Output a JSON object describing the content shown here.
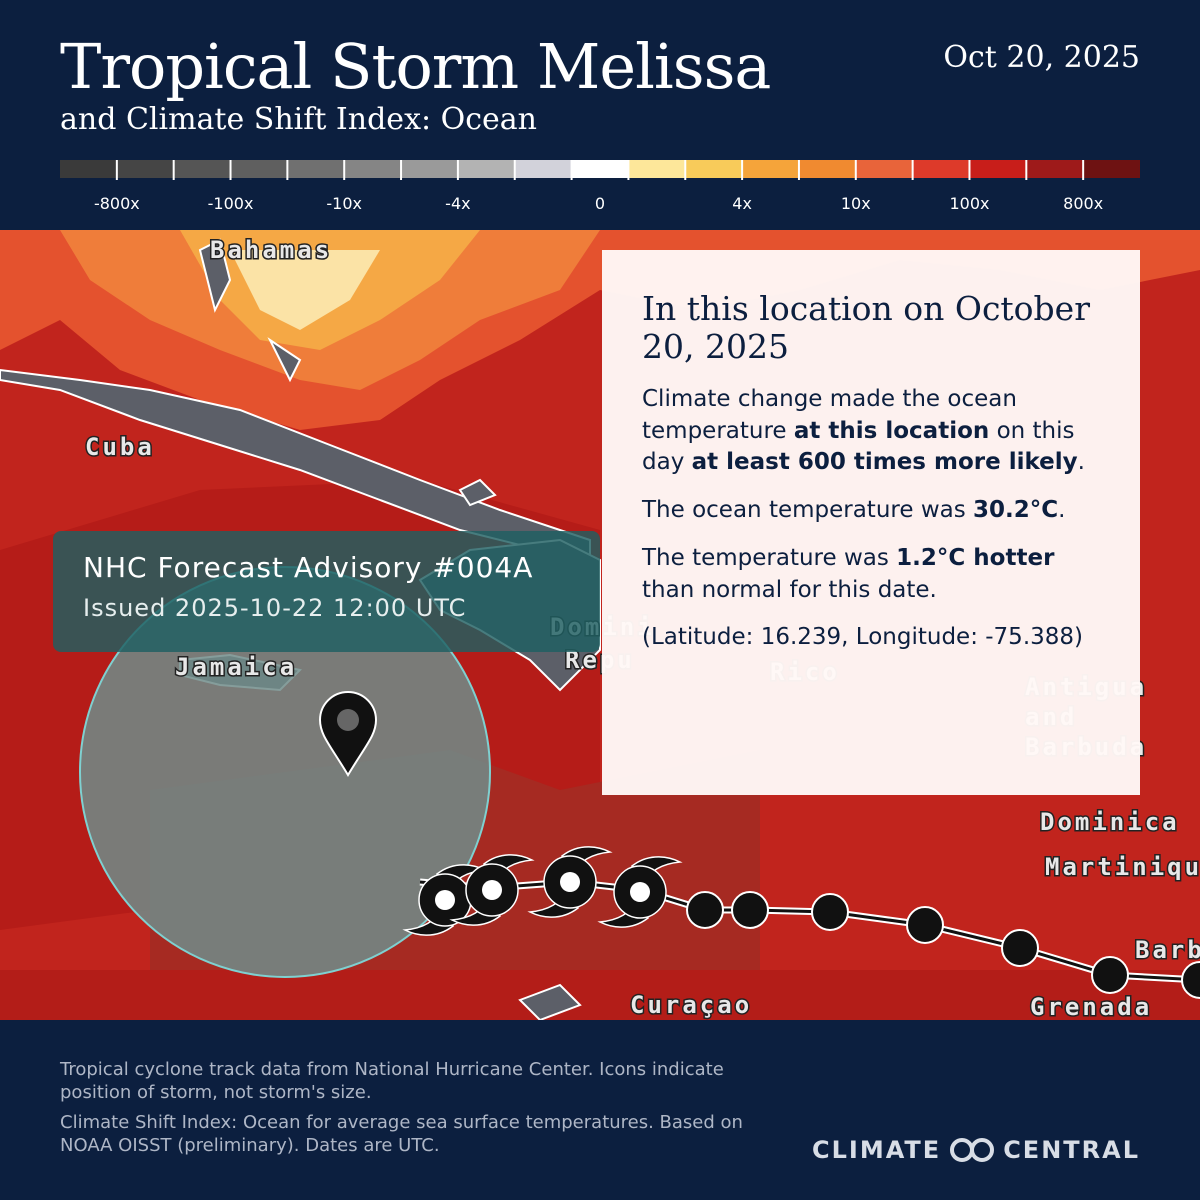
{
  "header": {
    "title": "Tropical Storm Melissa",
    "subtitle": "and Climate Shift Index: Ocean",
    "date": "Oct 20, 2025"
  },
  "legend": {
    "colors": [
      "#3a3a3a",
      "#454545",
      "#555555",
      "#5f5f5f",
      "#707070",
      "#858585",
      "#9a9a9a",
      "#b3b3b3",
      "#d2d2da",
      "#ffffff",
      "#fde79a",
      "#f8cb5a",
      "#f5a43a",
      "#f08a30",
      "#e8643a",
      "#dd3a2a",
      "#c81e1a",
      "#9e1a1a",
      "#6e1212"
    ],
    "labels": [
      "-800x",
      "-100x",
      "-10x",
      "-4x",
      "0",
      "4x",
      "10x",
      "100x",
      "800x"
    ]
  },
  "map": {
    "places": [
      "Bahamas",
      "Cuba",
      "Jamaica",
      "Domini",
      "Repu",
      "Rico",
      "Dominica",
      "Martiniqu",
      "Barb",
      "Grenada",
      "Curaçao"
    ],
    "antigua": [
      "Antigua",
      "and",
      "Barbuda"
    ]
  },
  "advisory": {
    "title": "NHC Forecast Advisory #004A",
    "issued": "Issued 2025-10-22 12:00 UTC"
  },
  "info": {
    "heading": "In this location on October 20, 2025",
    "paragraphs": [
      [
        {
          "text": "Climate change made the ocean temperature ",
          "bold": false
        },
        {
          "text": "at this location",
          "bold": true
        },
        {
          "text": " on this day ",
          "bold": false
        },
        {
          "text": "at least 600 times more likely",
          "bold": true
        },
        {
          "text": ".",
          "bold": false
        }
      ],
      [
        {
          "text": "The ocean temperature was ",
          "bold": false
        },
        {
          "text": "30.2°C",
          "bold": true
        },
        {
          "text": ".",
          "bold": false
        }
      ],
      [
        {
          "text": "The temperature was ",
          "bold": false
        },
        {
          "text": "1.2°C hotter",
          "bold": true
        },
        {
          "text": " than normal for this date.",
          "bold": false
        }
      ],
      [
        {
          "text": "(Latitude: 16.239, Longitude: -75.388)",
          "bold": false
        }
      ]
    ]
  },
  "footer": {
    "notes": [
      "Tropical cyclone track data from National Hurricane Center. Icons indicate position of storm, not storm's size.",
      "Climate Shift Index: Ocean for average sea surface temperatures. Based on NOAA OISST (preliminary). Dates are UTC."
    ],
    "logo_left": "CLIMATE",
    "logo_right": "CENTRAL"
  }
}
